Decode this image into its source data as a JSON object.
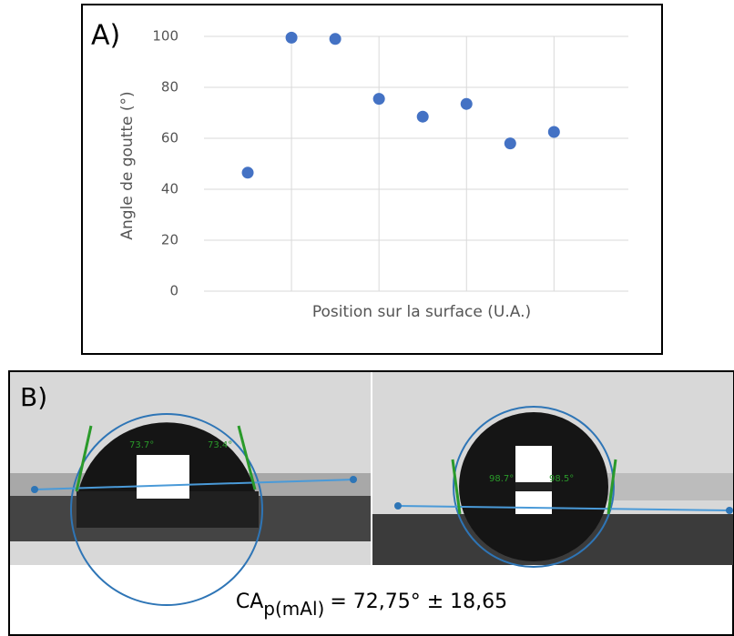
{
  "panel_a": {
    "label": "A)"
  },
  "chart_data": {
    "type": "scatter",
    "x_label": "Position sur la surface (U.A.)",
    "y_label": "Angle de goutte (°)",
    "x": [
      1,
      2,
      3,
      4,
      5,
      6,
      7,
      8
    ],
    "series": [
      {
        "color": "#4472c4",
        "values": [
          46.5,
          99.5,
          99,
          75.5,
          68.5,
          73.5,
          58,
          62.5
        ]
      }
    ],
    "xlim": [
      0,
      9.7
    ],
    "xticks": [
      2,
      4,
      6,
      8
    ],
    "ylim": [
      0,
      100
    ],
    "yticks": [
      0,
      20,
      40,
      60,
      80,
      100
    ],
    "grid": true
  },
  "panel_b": {
    "label": "B)",
    "angles": [
      "73.7°",
      "73.4°",
      "98.7°",
      "98.5°"
    ],
    "caption": {
      "main": "CA",
      "subscript": "p(mAl)",
      "rest": "= 72,75° ± 18,65"
    }
  }
}
